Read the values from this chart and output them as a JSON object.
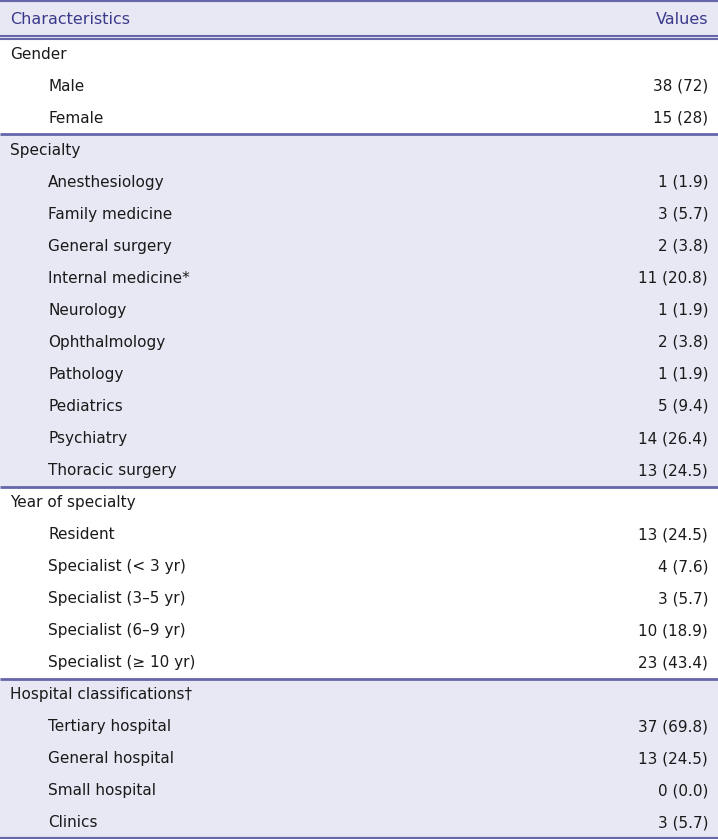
{
  "header": [
    "Characteristics",
    "Values"
  ],
  "rows": [
    {
      "label": "Gender",
      "value": "",
      "level": 0,
      "bg": "white"
    },
    {
      "label": "Male",
      "value": "38 (72)",
      "level": 1,
      "bg": "white"
    },
    {
      "label": "Female",
      "value": "15 (28)",
      "level": 1,
      "bg": "white"
    },
    {
      "label": "Specialty",
      "value": "",
      "level": 0,
      "bg": "lavender"
    },
    {
      "label": "Anesthesiology",
      "value": "1 (1.9)",
      "level": 1,
      "bg": "lavender"
    },
    {
      "label": "Family medicine",
      "value": "3 (5.7)",
      "level": 1,
      "bg": "lavender"
    },
    {
      "label": "General surgery",
      "value": "2 (3.8)",
      "level": 1,
      "bg": "lavender"
    },
    {
      "label": "Internal medicine*",
      "value": "11 (20.8)",
      "level": 1,
      "bg": "lavender"
    },
    {
      "label": "Neurology",
      "value": "1 (1.9)",
      "level": 1,
      "bg": "lavender"
    },
    {
      "label": "Ophthalmology",
      "value": "2 (3.8)",
      "level": 1,
      "bg": "lavender"
    },
    {
      "label": "Pathology",
      "value": "1 (1.9)",
      "level": 1,
      "bg": "lavender"
    },
    {
      "label": "Pediatrics",
      "value": "5 (9.4)",
      "level": 1,
      "bg": "lavender"
    },
    {
      "label": "Psychiatry",
      "value": "14 (26.4)",
      "level": 1,
      "bg": "lavender"
    },
    {
      "label": "Thoracic surgery",
      "value": "13 (24.5)",
      "level": 1,
      "bg": "lavender"
    },
    {
      "label": "Year of specialty",
      "value": "",
      "level": 0,
      "bg": "white"
    },
    {
      "label": "Resident",
      "value": "13 (24.5)",
      "level": 1,
      "bg": "white"
    },
    {
      "label": "Specialist (< 3 yr)",
      "value": "4 (7.6)",
      "level": 1,
      "bg": "white"
    },
    {
      "label": "Specialist (3–5 yr)",
      "value": "3 (5.7)",
      "level": 1,
      "bg": "white"
    },
    {
      "label": "Specialist (6–9 yr)",
      "value": "10 (18.9)",
      "level": 1,
      "bg": "white"
    },
    {
      "label": "Specialist (≥ 10 yr)",
      "value": "23 (43.4)",
      "level": 1,
      "bg": "white"
    },
    {
      "label": "Hospital classifications†",
      "value": "",
      "level": 0,
      "bg": "lavender"
    },
    {
      "label": "Tertiary hospital",
      "value": "37 (69.8)",
      "level": 1,
      "bg": "lavender"
    },
    {
      "label": "General hospital",
      "value": "13 (24.5)",
      "level": 1,
      "bg": "lavender"
    },
    {
      "label": "Small hospital",
      "value": "0 (0.0)",
      "level": 1,
      "bg": "lavender"
    },
    {
      "label": "Clinics",
      "value": "3 (5.7)",
      "level": 1,
      "bg": "lavender"
    }
  ],
  "header_color": "#3a3a8c",
  "border_color": "#6666aa",
  "lavender_color": "#e8e8f4",
  "white_color": "#ffffff",
  "text_color": "#1a1a1a",
  "font_size": 11.0,
  "header_font_size": 11.5,
  "fig_width": 7.18,
  "fig_height": 8.39,
  "dpi": 100
}
